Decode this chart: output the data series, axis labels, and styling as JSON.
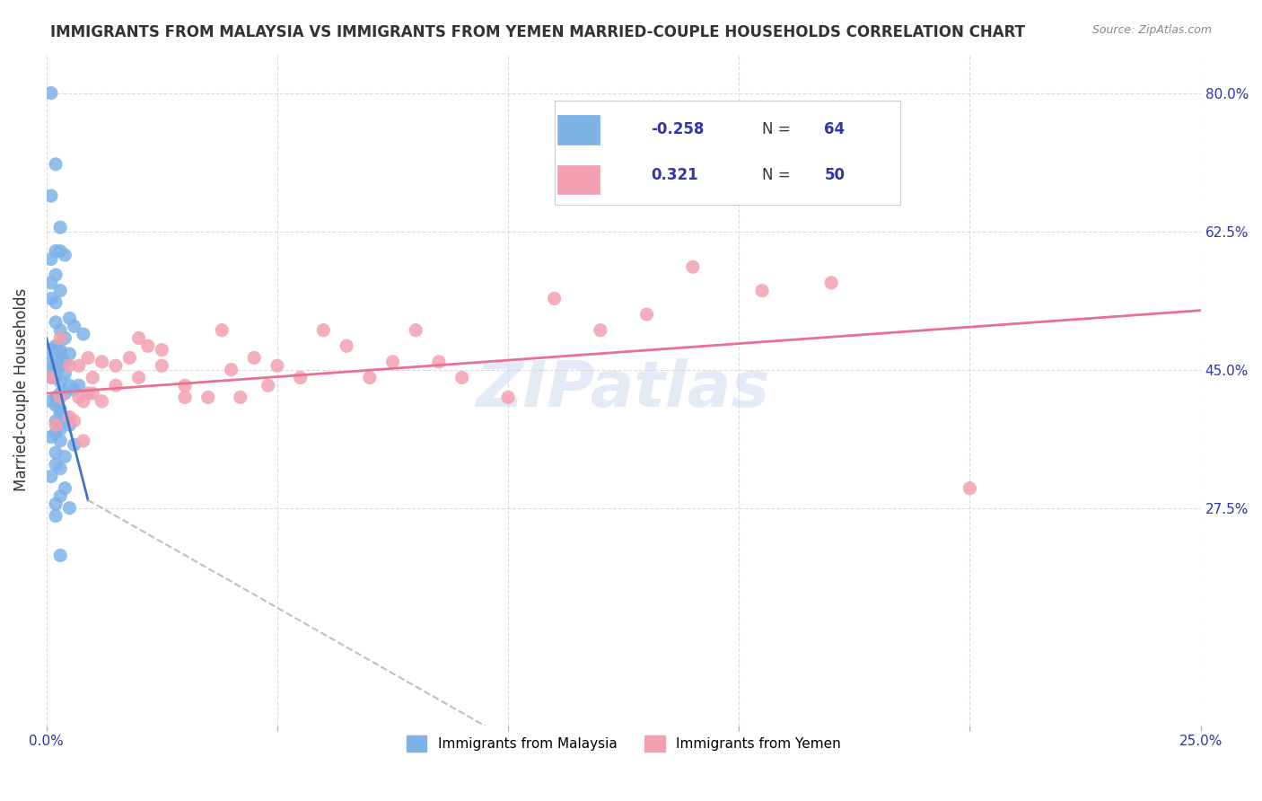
{
  "title": "IMMIGRANTS FROM MALAYSIA VS IMMIGRANTS FROM YEMEN MARRIED-COUPLE HOUSEHOLDS CORRELATION CHART",
  "source": "Source: ZipAtlas.com",
  "ylabel": "Married-couple Households",
  "xlabel": "",
  "watermark": "ZIPatlas",
  "legend_malaysia": "Immigrants from Malaysia",
  "legend_yemen": "Immigrants from Yemen",
  "R_malaysia": -0.258,
  "N_malaysia": 64,
  "R_yemen": 0.321,
  "N_yemen": 50,
  "color_malaysia": "#7EB3E8",
  "color_yemen": "#F4A0B0",
  "line_malaysia": "#4472C4",
  "line_yemen": "#E87090",
  "line_dashed": "#C0C0C0",
  "x_min": 0.0,
  "x_max": 0.25,
  "y_min": 0.0,
  "y_max": 0.85,
  "yticks": [
    0.275,
    0.45,
    0.625,
    0.8
  ],
  "ytick_labels": [
    "27.5%",
    "45.0%",
    "62.5%",
    "80.0%"
  ],
  "xticks": [
    0.0,
    0.05,
    0.1,
    0.15,
    0.2,
    0.25
  ],
  "xtick_labels": [
    "0.0%",
    "",
    "",
    "",
    "",
    "25.0%"
  ],
  "malaysia_x": [
    0.001,
    0.002,
    0.001,
    0.003,
    0.002,
    0.003,
    0.001,
    0.004,
    0.002,
    0.001,
    0.003,
    0.001,
    0.002,
    0.005,
    0.002,
    0.006,
    0.003,
    0.008,
    0.004,
    0.002,
    0.001,
    0.003,
    0.005,
    0.003,
    0.002,
    0.001,
    0.004,
    0.002,
    0.003,
    0.002,
    0.001,
    0.004,
    0.001,
    0.002,
    0.003,
    0.005,
    0.007,
    0.006,
    0.004,
    0.003,
    0.002,
    0.001,
    0.002,
    0.003,
    0.003,
    0.004,
    0.002,
    0.005,
    0.003,
    0.002,
    0.001,
    0.003,
    0.006,
    0.002,
    0.004,
    0.002,
    0.003,
    0.001,
    0.004,
    0.003,
    0.002,
    0.005,
    0.002,
    0.003
  ],
  "malaysia_y": [
    0.8,
    0.71,
    0.67,
    0.63,
    0.6,
    0.6,
    0.59,
    0.595,
    0.57,
    0.56,
    0.55,
    0.54,
    0.535,
    0.515,
    0.51,
    0.505,
    0.5,
    0.495,
    0.49,
    0.48,
    0.475,
    0.475,
    0.47,
    0.47,
    0.465,
    0.46,
    0.46,
    0.455,
    0.455,
    0.45,
    0.45,
    0.445,
    0.44,
    0.44,
    0.435,
    0.43,
    0.43,
    0.425,
    0.42,
    0.42,
    0.415,
    0.41,
    0.405,
    0.4,
    0.395,
    0.39,
    0.385,
    0.38,
    0.375,
    0.37,
    0.365,
    0.36,
    0.355,
    0.345,
    0.34,
    0.33,
    0.325,
    0.315,
    0.3,
    0.29,
    0.28,
    0.275,
    0.265,
    0.215
  ],
  "yemen_x": [
    0.001,
    0.002,
    0.003,
    0.005,
    0.003,
    0.007,
    0.005,
    0.008,
    0.006,
    0.009,
    0.008,
    0.01,
    0.007,
    0.012,
    0.009,
    0.015,
    0.01,
    0.018,
    0.012,
    0.02,
    0.015,
    0.022,
    0.025,
    0.02,
    0.03,
    0.025,
    0.035,
    0.03,
    0.04,
    0.038,
    0.045,
    0.042,
    0.048,
    0.05,
    0.055,
    0.06,
    0.065,
    0.07,
    0.075,
    0.08,
    0.085,
    0.09,
    0.1,
    0.11,
    0.12,
    0.13,
    0.14,
    0.155,
    0.17,
    0.2
  ],
  "yemen_y": [
    0.44,
    0.38,
    0.49,
    0.455,
    0.415,
    0.415,
    0.39,
    0.36,
    0.385,
    0.42,
    0.41,
    0.44,
    0.455,
    0.41,
    0.465,
    0.43,
    0.42,
    0.465,
    0.46,
    0.44,
    0.455,
    0.48,
    0.475,
    0.49,
    0.43,
    0.455,
    0.415,
    0.415,
    0.45,
    0.5,
    0.465,
    0.415,
    0.43,
    0.455,
    0.44,
    0.5,
    0.48,
    0.44,
    0.46,
    0.5,
    0.46,
    0.44,
    0.415,
    0.54,
    0.5,
    0.52,
    0.58,
    0.55,
    0.56,
    0.3
  ]
}
